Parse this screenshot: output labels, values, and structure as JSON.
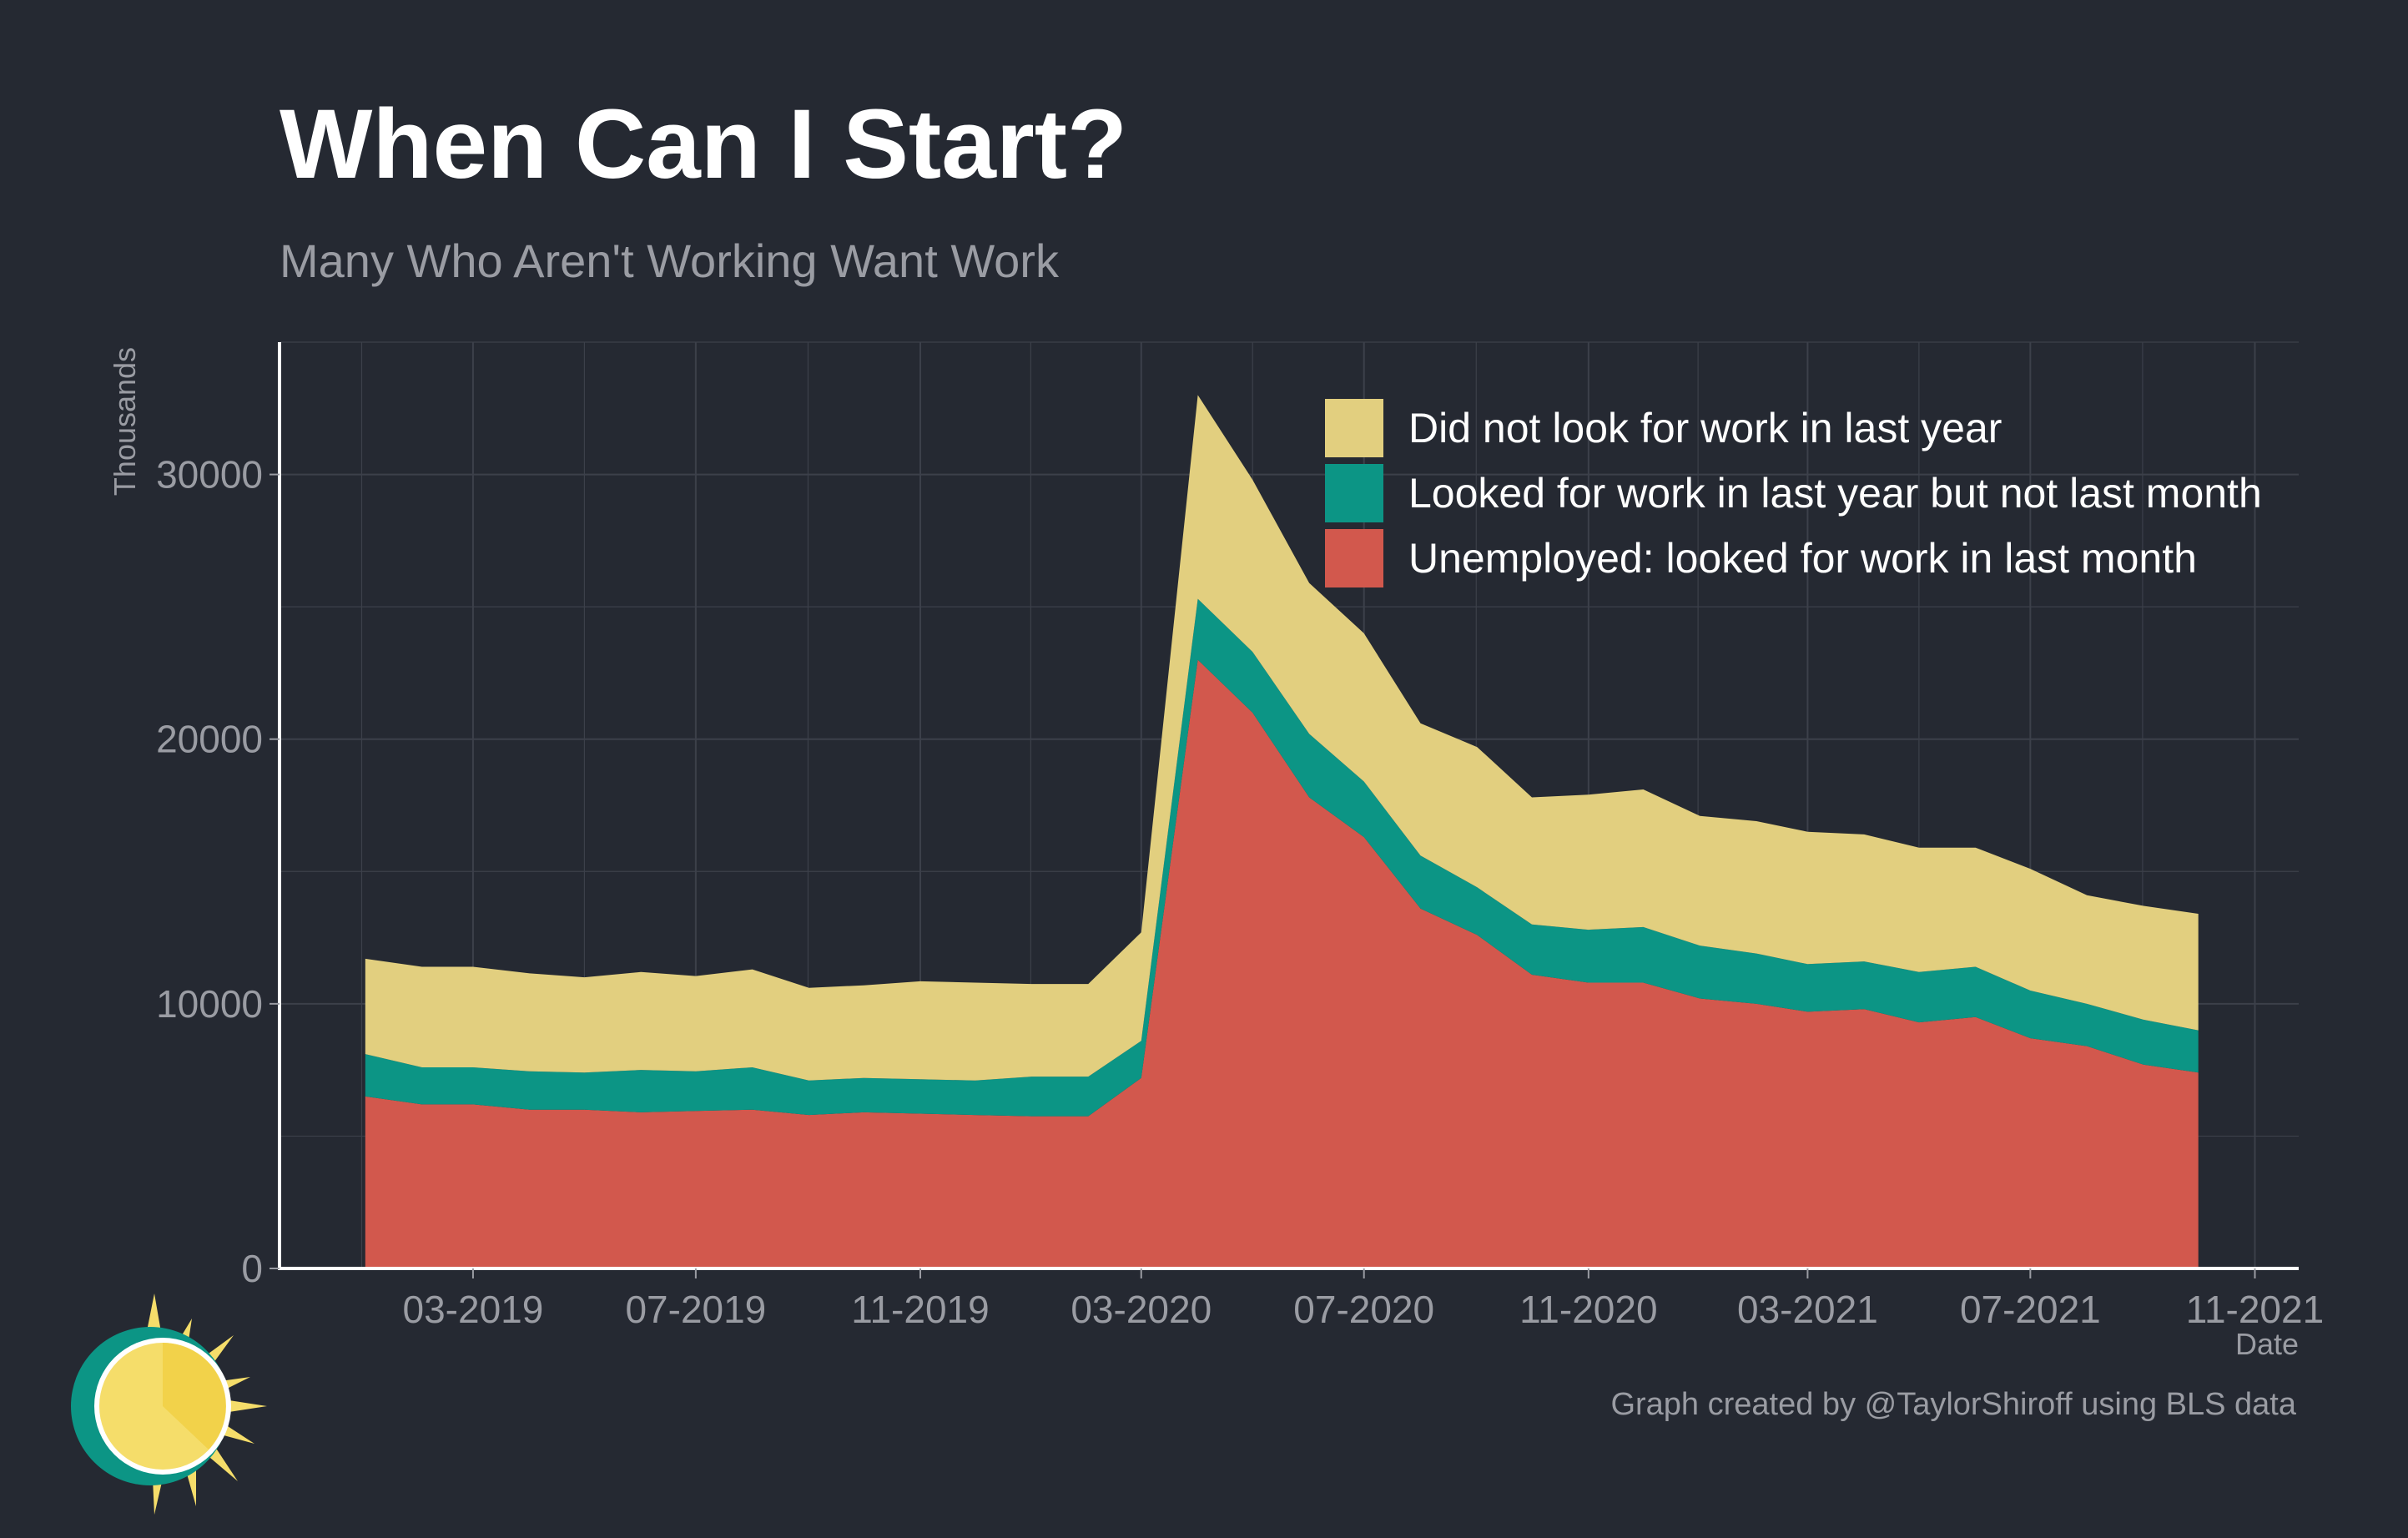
{
  "title": "When Can I Start?",
  "subtitle": "Many Who Aren't Working Want Work",
  "credit": "Graph created by @TaylorShiroff using BLS data",
  "colors": {
    "background": "#252932",
    "grid": "#3c404a",
    "did_not_look": "#e2cf7f",
    "looked_last_year": "#0c9585",
    "unemployed": "#d2584d"
  },
  "chart_data": {
    "type": "area",
    "stacked": true,
    "xlabel": "Date",
    "ylabel": "Thousands",
    "ylim": [
      0,
      35000
    ],
    "y_ticks": [
      0,
      10000,
      20000,
      30000
    ],
    "x_ticks": [
      "2019-03",
      "2019-07",
      "2019-11",
      "2020-03",
      "2020-07",
      "2020-11",
      "2021-03",
      "2021-07",
      "2021-11"
    ],
    "x_tick_labels": [
      "03-2019",
      "07-2019",
      "11-2019",
      "03-2020",
      "07-2020",
      "11-2020",
      "03-2021",
      "07-2021",
      "11-2021"
    ],
    "x_range": [
      "2018-11-15",
      "2021-11-25"
    ],
    "legend_position": "top-right",
    "x": [
      "2019-01",
      "2019-02",
      "2019-03",
      "2019-04",
      "2019-05",
      "2019-06",
      "2019-07",
      "2019-08",
      "2019-09",
      "2019-10",
      "2019-11",
      "2019-12",
      "2020-01",
      "2020-02",
      "2020-03",
      "2020-04",
      "2020-05",
      "2020-06",
      "2020-07",
      "2020-08",
      "2020-09",
      "2020-10",
      "2020-11",
      "2020-12",
      "2021-01",
      "2021-02",
      "2021-03",
      "2021-04",
      "2021-05",
      "2021-06",
      "2021-07",
      "2021-08",
      "2021-09",
      "2021-10"
    ],
    "series": [
      {
        "name": "Unemployed: looked for work in last month",
        "color": "#d2584d",
        "values": [
          6500,
          6200,
          6200,
          6000,
          6000,
          5900,
          5950,
          6000,
          5800,
          5900,
          5850,
          5800,
          5750,
          5750,
          7200,
          23000,
          21000,
          17800,
          16300,
          13600,
          12600,
          11100,
          10800,
          10800,
          10200,
          10000,
          9700,
          9800,
          9300,
          9500,
          8700,
          8400,
          7700,
          7400
        ]
      },
      {
        "name": "Looked for work in last year but not last month",
        "color": "#0c9585",
        "values": [
          1600,
          1400,
          1400,
          1450,
          1400,
          1600,
          1500,
          1600,
          1300,
          1300,
          1300,
          1300,
          1500,
          1500,
          1400,
          2300,
          2300,
          2400,
          2100,
          2000,
          1800,
          1900,
          2000,
          2100,
          2000,
          1900,
          1800,
          1800,
          1900,
          1900,
          1800,
          1600,
          1700,
          1600
        ]
      },
      {
        "name": "Did not look for work in last year",
        "color": "#e2cf7f",
        "values": [
          3600,
          3800,
          3800,
          3700,
          3600,
          3700,
          3600,
          3700,
          3500,
          3500,
          3700,
          3700,
          3500,
          3500,
          4100,
          7700,
          6500,
          5700,
          5600,
          5000,
          5300,
          4800,
          5100,
          5200,
          4900,
          5000,
          5000,
          4800,
          4700,
          4500,
          4600,
          4100,
          4300,
          4400
        ]
      }
    ],
    "legend_order": [
      "Did not look for work in last year",
      "Looked for work in last year but not last month",
      "Unemployed: looked for work in last month"
    ]
  }
}
